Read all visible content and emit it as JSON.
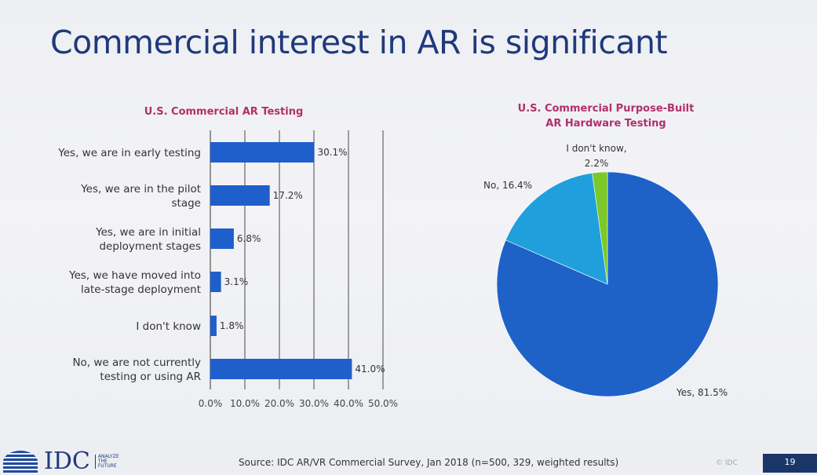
{
  "slide": {
    "title": "Commercial interest in AR is significant",
    "source": "Source: IDC AR/VR Commercial Survey, Jan 2018 (n=500, 329, weighted results)",
    "copyright": "© IDC",
    "page_number": "19",
    "logo": {
      "text": "IDC",
      "tagline": [
        "ANALYZE",
        "THE",
        "FUTURE"
      ]
    }
  },
  "colors": {
    "bar": "#1f5fcc",
    "pie_yes": "#1e62c8",
    "pie_no": "#1fa0dc",
    "pie_dont_know": "#7cc72a",
    "title": "#1f3a7a",
    "chart_title": "#b0306a"
  },
  "chart_data": [
    {
      "type": "bar",
      "orientation": "horizontal",
      "title": "U.S. Commercial AR Testing",
      "categories": [
        [
          "Yes, we are in early testing"
        ],
        [
          "Yes, we are in the pilot",
          "stage"
        ],
        [
          "Yes, we are in initial",
          "deployment stages"
        ],
        [
          "Yes, we have moved into",
          "late-stage deployment"
        ],
        [
          "I don't know"
        ],
        [
          "No, we are not currently",
          "testing or using AR"
        ]
      ],
      "values": [
        30.1,
        17.2,
        6.8,
        3.1,
        1.8,
        41.0
      ],
      "value_labels": [
        "30.1%",
        "17.2%",
        "6.8%",
        "3.1%",
        "1.8%",
        "41.0%"
      ],
      "xlim": [
        0,
        50
      ],
      "ticks": [
        "0.0%",
        "10.0%",
        "20.0%",
        "30.0%",
        "40.0%",
        "50.0%"
      ],
      "grid": true
    },
    {
      "type": "pie",
      "title": [
        "U.S. Commercial Purpose-Built",
        "AR Hardware Testing"
      ],
      "slices": [
        {
          "name": "Yes",
          "value": 81.5,
          "label": "Yes, 81.5%"
        },
        {
          "name": "No",
          "value": 16.4,
          "label": "No, 16.4%"
        },
        {
          "name": "I don't know",
          "value": 2.2,
          "label": [
            "I don't know,",
            "2.2%"
          ]
        }
      ]
    }
  ]
}
